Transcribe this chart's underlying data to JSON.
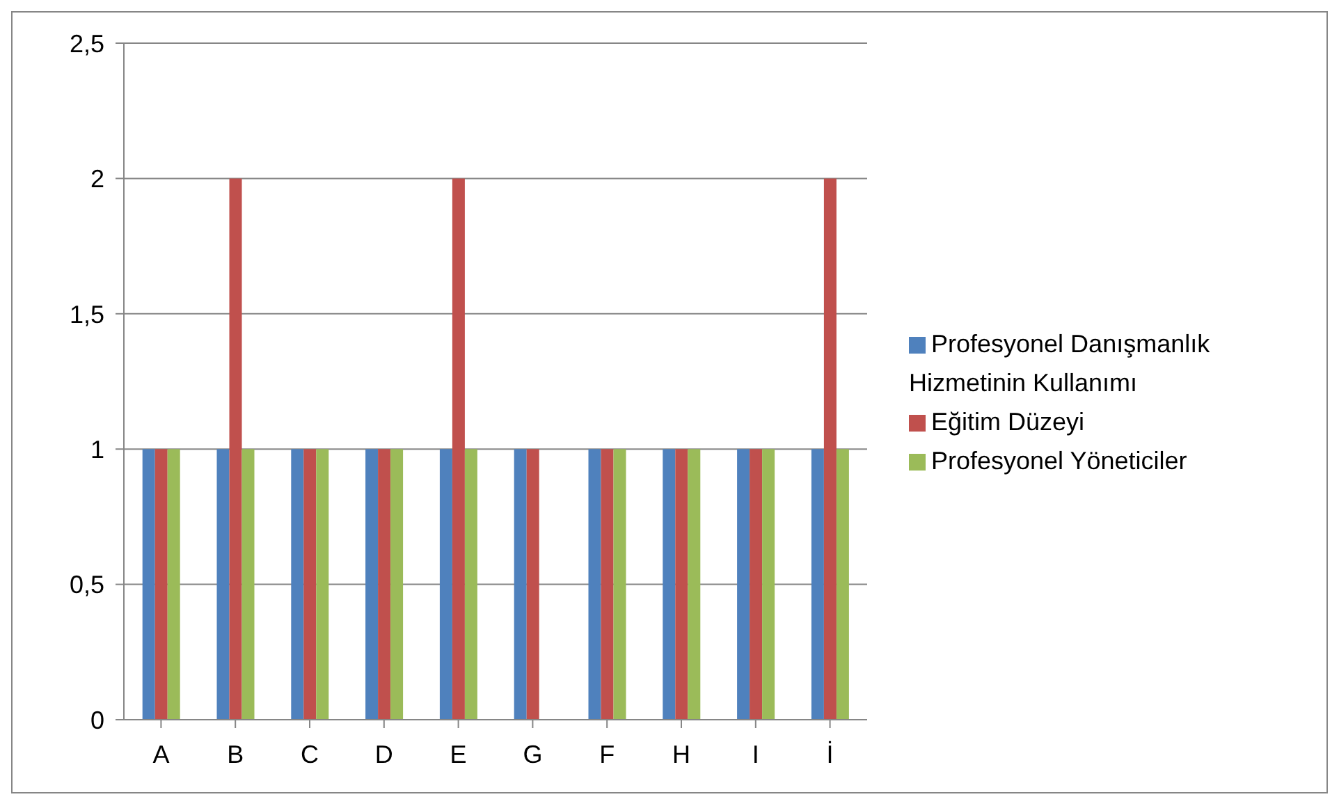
{
  "chart_data": {
    "type": "bar",
    "categories": [
      "A",
      "B",
      "C",
      "D",
      "E",
      "G",
      "F",
      "H",
      "I",
      "İ"
    ],
    "series": [
      {
        "name": "Profesyonel Danışmanlık Hizmetinin Kullanımı",
        "color": "#4f81bd",
        "values": [
          1,
          1,
          1,
          1,
          1,
          1,
          1,
          1,
          1,
          1
        ]
      },
      {
        "name": "Eğitim Düzeyi",
        "color": "#c0504d",
        "values": [
          1,
          2,
          1,
          1,
          2,
          1,
          1,
          1,
          1,
          2
        ]
      },
      {
        "name": "Profesyonel Yöneticiler",
        "color": "#9bbb59",
        "values": [
          1,
          1,
          1,
          1,
          1,
          0,
          1,
          1,
          1,
          1
        ]
      }
    ],
    "ylim": [
      0,
      2.5
    ],
    "yticks": [
      0,
      {
        "value": 0.5,
        "label": "0,5"
      },
      1,
      {
        "value": 1.5,
        "label": "1,5"
      },
      2,
      {
        "value": 2.5,
        "label": "2,5"
      }
    ],
    "grid": "y",
    "legend": "right"
  }
}
